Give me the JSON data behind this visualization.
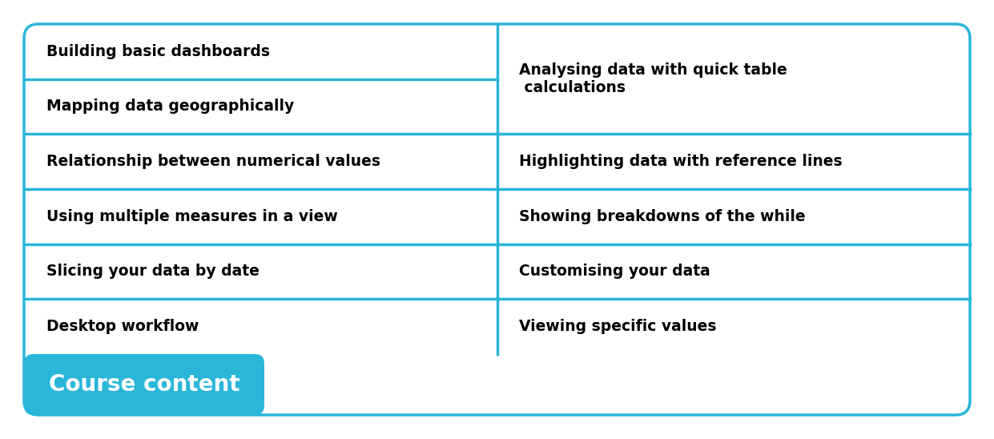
{
  "title": "Course content",
  "title_bg_color": "#29b6d8",
  "title_text_color": "#ffffff",
  "border_color": "#29b6d8",
  "cell_bg_color": "#ffffff",
  "text_color": "#000000",
  "left_column": [
    "Desktop workflow",
    "Slicing your data by date",
    "Using multiple measures in a view",
    "Relationship between numerical values",
    "Mapping data geographically",
    "Building basic dashboards"
  ],
  "right_column": [
    "Viewing specific values",
    "Customising your data",
    "Showing breakdowns of the while",
    "Highlighting data with reference lines",
    "Analysing data with quick table\n calculations",
    ""
  ],
  "figsize": [
    12.41,
    5.48
  ],
  "dpi": 100
}
